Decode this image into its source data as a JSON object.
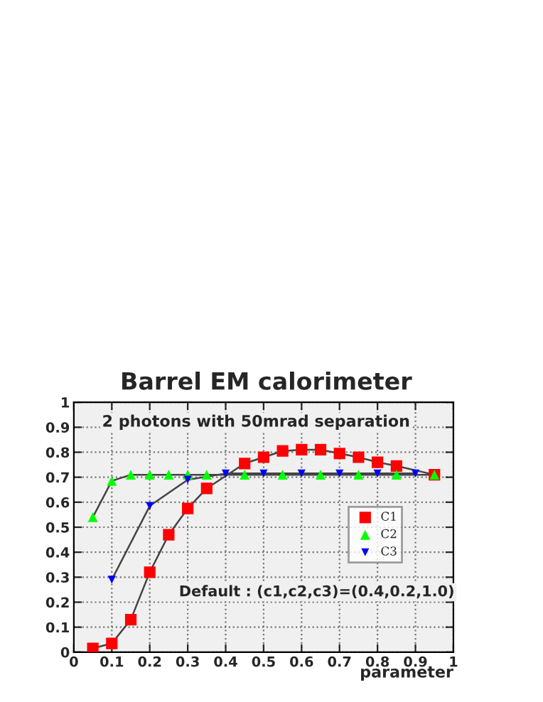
{
  "chart_data": {
    "type": "line",
    "title": "Barrel EM calorimeter",
    "xlabel": "parameter",
    "annotations": [
      "2 photons with 50mrad separation",
      "Default : (c1,c2,c3)=(0.4,0.2,1.0)"
    ],
    "xlim": [
      0,
      1
    ],
    "ylim": [
      0,
      1
    ],
    "xticks": [
      0,
      0.1,
      0.2,
      0.3,
      0.4,
      0.5,
      0.6,
      0.7,
      0.8,
      0.9,
      1
    ],
    "yticks": [
      0,
      0.1,
      0.2,
      0.3,
      0.4,
      0.5,
      0.6,
      0.7,
      0.8,
      0.9,
      1
    ],
    "grid": true,
    "legend": "right",
    "line_style": "solid",
    "series": [
      {
        "name": "C1",
        "color": "#ff0000",
        "marker": "square",
        "x": [
          0.05,
          0.1,
          0.15,
          0.2,
          0.25,
          0.3,
          0.35,
          0.45,
          0.5,
          0.55,
          0.6,
          0.65,
          0.7,
          0.75,
          0.8,
          0.85,
          0.95
        ],
        "values": [
          0.015,
          0.035,
          0.13,
          0.32,
          0.47,
          0.575,
          0.655,
          0.755,
          0.78,
          0.805,
          0.81,
          0.81,
          0.795,
          0.78,
          0.76,
          0.745,
          0.71
        ]
      },
      {
        "name": "C2",
        "color": "#00ff00",
        "marker": "triangle",
        "x": [
          0.05,
          0.1,
          0.15,
          0.2,
          0.25,
          0.3,
          0.35,
          0.45,
          0.55,
          0.65,
          0.75,
          0.85,
          0.95
        ],
        "values": [
          0.54,
          0.685,
          0.71,
          0.71,
          0.71,
          0.71,
          0.71,
          0.71,
          0.71,
          0.71,
          0.71,
          0.71,
          0.71
        ]
      },
      {
        "name": "C3",
        "color": "#0000ff",
        "marker": "triangle_down",
        "x": [
          0.1,
          0.2,
          0.3,
          0.4,
          0.5,
          0.6,
          0.7,
          0.8,
          0.9
        ],
        "values": [
          0.29,
          0.585,
          0.69,
          0.715,
          0.715,
          0.715,
          0.715,
          0.715,
          0.715
        ]
      }
    ]
  }
}
